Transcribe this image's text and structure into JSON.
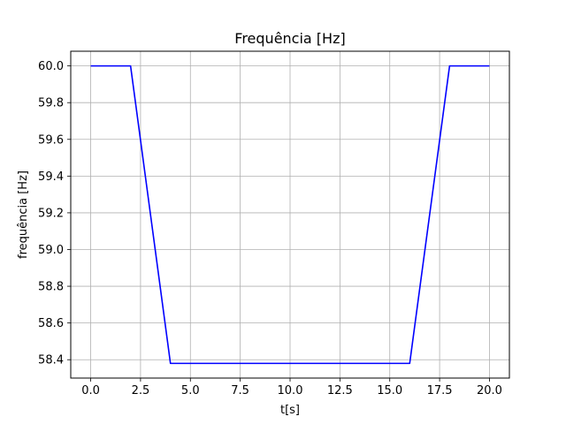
{
  "chart_data": {
    "type": "line",
    "title": "Frequência [Hz]",
    "xlabel": "t[s]",
    "ylabel": "frequência [Hz]",
    "xlim": [
      -1.0,
      21.0
    ],
    "ylim": [
      58.3,
      60.08
    ],
    "grid": true,
    "x_ticks": [
      0.0,
      2.5,
      5.0,
      7.5,
      10.0,
      12.5,
      15.0,
      17.5,
      20.0
    ],
    "x_tick_labels": [
      "0.0",
      "2.5",
      "5.0",
      "7.5",
      "10.0",
      "12.5",
      "15.0",
      "17.5",
      "20.0"
    ],
    "y_ticks": [
      58.4,
      58.6,
      58.8,
      59.0,
      59.2,
      59.4,
      59.6,
      59.8,
      60.0
    ],
    "y_tick_labels": [
      "58.4",
      "58.6",
      "58.8",
      "59.0",
      "59.2",
      "59.4",
      "59.6",
      "59.8",
      "60.0"
    ],
    "series": [
      {
        "color": "#0000ff",
        "x": [
          0,
          2,
          4,
          16,
          18,
          20
        ],
        "y": [
          60.0,
          60.0,
          58.38,
          58.38,
          60.0,
          60.0
        ]
      }
    ]
  }
}
